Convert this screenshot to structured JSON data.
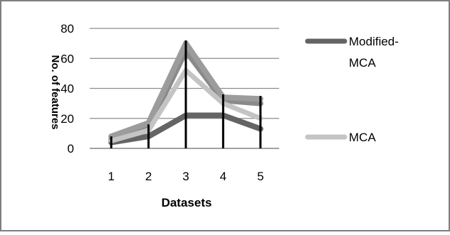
{
  "chart_data": {
    "type": "line",
    "xlabel": "Datasets",
    "ylabel": "No. of features",
    "categories": [
      "1",
      "2",
      "3",
      "4",
      "5"
    ],
    "y_ticks": [
      "0",
      "20",
      "40",
      "60",
      "80"
    ],
    "ylim": [
      0,
      80
    ],
    "grid": true,
    "legend_position": "right",
    "series": [
      {
        "name": "Modified-MCA",
        "values": [
          4,
          8,
          22,
          22,
          13
        ],
        "color": "#646464",
        "legend": true
      },
      {
        "name": "",
        "values": [
          6,
          14,
          65,
          32,
          30
        ],
        "color": "#8a8a8a",
        "legend": false
      },
      {
        "name": "",
        "values": [
          8,
          17,
          70,
          34,
          33
        ],
        "color": "#9c9c9c",
        "legend": false
      },
      {
        "name": "MCA",
        "values": [
          5,
          12,
          52,
          30,
          20
        ],
        "color": "#c4c4c4",
        "legend": true
      }
    ],
    "drop_lines": [
      8,
      16,
      72,
      36,
      35
    ]
  }
}
